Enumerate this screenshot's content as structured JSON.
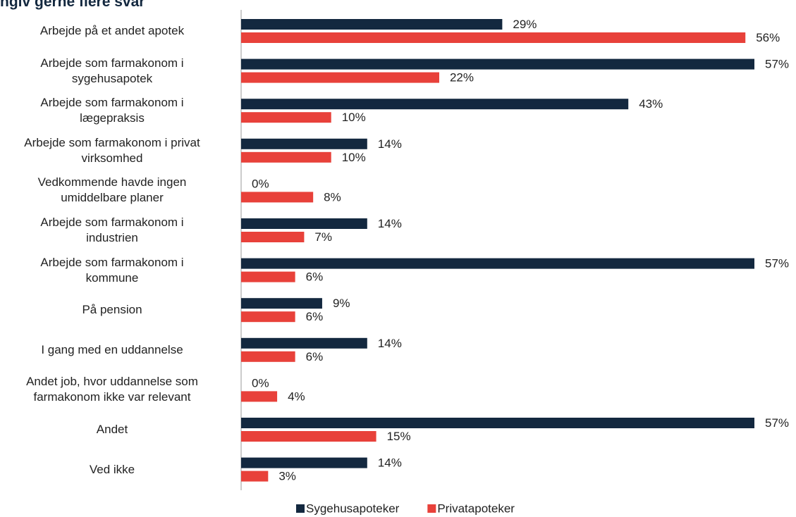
{
  "chart_data": {
    "type": "bar",
    "orientation": "horizontal",
    "title": "ngiv gerne flere svar",
    "categories": [
      "Arbejde på et andet apotek",
      "Arbejde som farmakonom i\nsygehusapotek",
      "Arbejde som farmakonom i\nlægepraksis",
      "Arbejde som farmakonom i privat\nvirksomhed",
      "Vedkommende havde ingen\numiddelbare planer",
      "Arbejde som farmakonom i\nindustrien",
      "Arbejde som farmakonom i\nkommune",
      "På pension",
      "I gang med en uddannelse",
      "Andet job, hvor uddannelse som\nfarmakonom ikke var relevant",
      "Andet",
      "Ved ikke"
    ],
    "series": [
      {
        "name": "Sygehusapoteker",
        "color": "#13283f",
        "values": [
          29,
          57,
          43,
          14,
          0,
          14,
          57,
          9,
          14,
          0,
          57,
          14
        ],
        "value_labels": [
          "29%",
          "57%",
          "43%",
          "14%",
          "0%",
          "14%",
          "57%",
          "9%",
          "14%",
          "0%",
          "57%",
          "14%"
        ]
      },
      {
        "name": "Privatapoteker",
        "color": "#e8413a",
        "values": [
          56,
          22,
          10,
          10,
          8,
          7,
          6,
          6,
          6,
          4,
          15,
          3
        ],
        "value_labels": [
          "56%",
          "22%",
          "10%",
          "10%",
          "8%",
          "7%",
          "6%",
          "6%",
          "6%",
          "4%",
          "15%",
          "3%"
        ]
      }
    ],
    "legend": "bottom"
  }
}
